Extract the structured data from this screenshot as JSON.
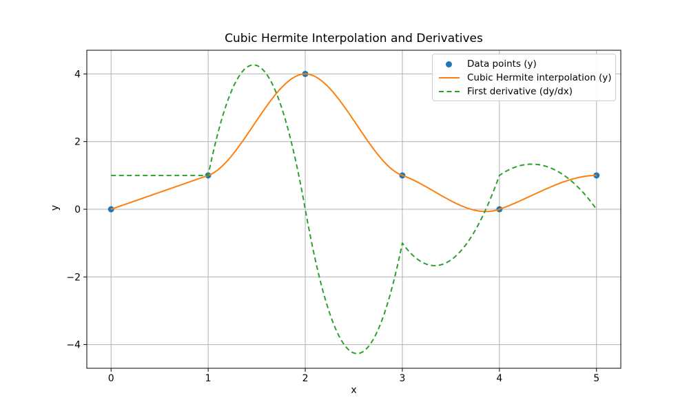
{
  "chart_data": {
    "type": "line",
    "title": "Cubic Hermite Interpolation and Derivatives",
    "xlabel": "x",
    "ylabel": "y",
    "xlim": [
      -0.25,
      5.25
    ],
    "ylim": [
      -4.7,
      4.7
    ],
    "x_ticks": [
      0,
      1,
      2,
      3,
      4,
      5
    ],
    "y_ticks": [
      -4,
      -2,
      0,
      2,
      4
    ],
    "grid": true,
    "legend_position": "upper right",
    "knots": {
      "x": [
        0,
        1,
        2,
        3,
        4,
        5
      ],
      "y": [
        0,
        1,
        4,
        1,
        0,
        1
      ],
      "dydx": [
        1,
        1,
        0,
        -1,
        1,
        0
      ]
    },
    "series": [
      {
        "name": "Data points (y)",
        "type": "scatter",
        "color": "#1f77b4",
        "x": [
          0,
          1,
          2,
          3,
          4,
          5
        ],
        "y": [
          0,
          1,
          4,
          1,
          0,
          1
        ]
      },
      {
        "name": "Cubic Hermite interpolation (y)",
        "type": "line",
        "style": "solid",
        "color": "#ff7f0e"
      },
      {
        "name": "First derivative (dy/dx)",
        "type": "line",
        "style": "dashed",
        "color": "#2ca02c"
      }
    ]
  },
  "colors": {
    "grid": "#b0b0b0",
    "axis": "#000000",
    "text": "#000000",
    "legend_border": "#cccccc",
    "background": "#ffffff"
  }
}
